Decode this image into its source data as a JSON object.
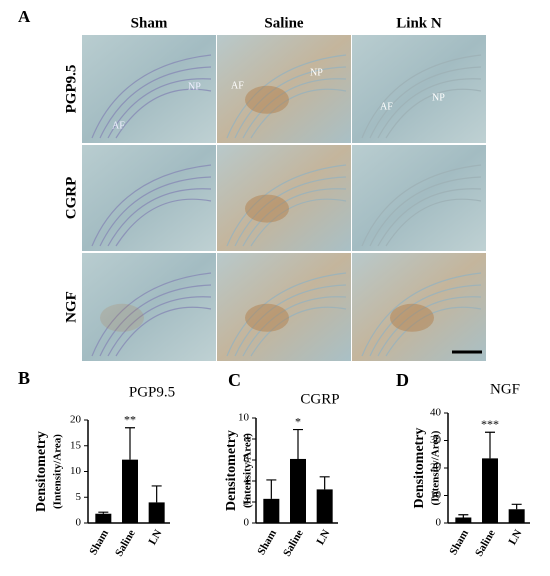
{
  "figure_label": "A",
  "columns": [
    "Sham",
    "Saline",
    "Link N"
  ],
  "rows": [
    "PGP9.5",
    "CGRP",
    "NGF"
  ],
  "image_labels": [
    "NP",
    "AF",
    "AF",
    "NP",
    "AF",
    "NP"
  ],
  "chart_data": [
    {
      "type": "bar",
      "panel": "B",
      "title": "PGP9.5",
      "ylabel": [
        "Densitometry",
        "(Intensity/Area)"
      ],
      "categories": [
        "Sham",
        "Saline",
        "LN"
      ],
      "values": [
        1.8,
        12.3,
        4.0
      ],
      "errors": [
        0.3,
        6.2,
        3.2
      ],
      "annotations": [
        null,
        "**",
        null
      ],
      "color": "#000000",
      "ylim": [
        0,
        20
      ],
      "yticks": [
        0,
        5,
        10,
        15,
        20
      ]
    },
    {
      "type": "bar",
      "panel": "C",
      "title": "CGRP",
      "ylabel": [
        "Densitometry",
        "(Intensity/Area)"
      ],
      "categories": [
        "Sham",
        "Saline",
        "LN"
      ],
      "values": [
        2.3,
        6.1,
        3.2
      ],
      "errors": [
        1.8,
        2.8,
        1.2
      ],
      "annotations": [
        null,
        "*",
        null
      ],
      "color": "#000000",
      "ylim": [
        0,
        10
      ],
      "yticks": [
        0,
        2,
        4,
        6,
        8,
        10
      ]
    },
    {
      "type": "bar",
      "panel": "D",
      "title": "NGF",
      "ylabel": [
        "Densitometry",
        "(Intensity/Area)"
      ],
      "categories": [
        "Sham",
        "Saline",
        "LN"
      ],
      "values": [
        2.0,
        23.5,
        5.0
      ],
      "errors": [
        1.0,
        9.5,
        1.8
      ],
      "annotations": [
        null,
        "***",
        null
      ],
      "color": "#000000",
      "ylim": [
        0,
        40
      ],
      "yticks": [
        0,
        10,
        20,
        30,
        40
      ]
    }
  ]
}
